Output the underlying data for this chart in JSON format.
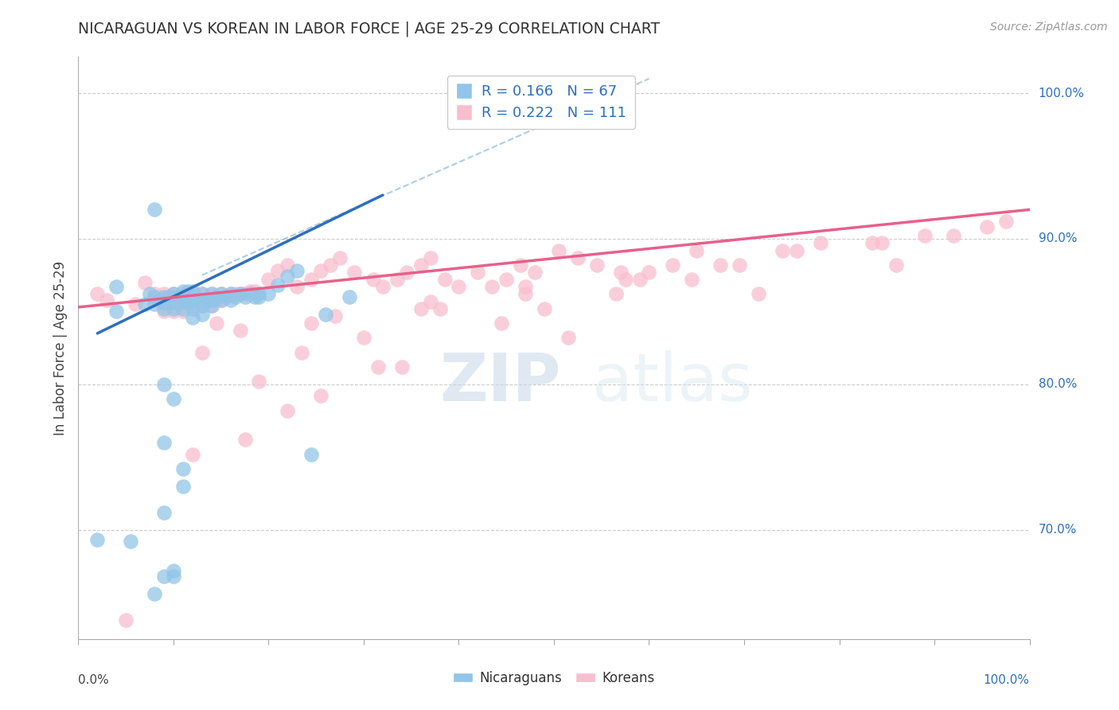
{
  "title": "NICARAGUAN VS KOREAN IN LABOR FORCE | AGE 25-29 CORRELATION CHART",
  "source": "Source: ZipAtlas.com",
  "ylabel": "In Labor Force | Age 25-29",
  "ytick_labels": [
    "70.0%",
    "80.0%",
    "90.0%",
    "100.0%"
  ],
  "ytick_values": [
    0.7,
    0.8,
    0.9,
    1.0
  ],
  "xlim": [
    0.0,
    1.0
  ],
  "ylim": [
    0.625,
    1.025
  ],
  "legend_blue_r": "0.166",
  "legend_blue_n": "67",
  "legend_pink_r": "0.222",
  "legend_pink_n": "111",
  "blue_color": "#92c5e8",
  "pink_color": "#f8bece",
  "trendline_blue": "#2e6fbe",
  "trendline_pink": "#e8608a",
  "dashed_color": "#8ab8e0",
  "watermark_zip": "ZIP",
  "watermark_atlas": "atlas",
  "legend_r_color": "#2e6fbe",
  "legend_n_color": "#2e6fbe",
  "bottom_legend_color": "#666666",
  "blue_scatter_x": [
    0.02,
    0.04,
    0.04,
    0.055,
    0.07,
    0.075,
    0.08,
    0.08,
    0.085,
    0.09,
    0.09,
    0.09,
    0.095,
    0.1,
    0.1,
    0.1,
    0.105,
    0.11,
    0.11,
    0.11,
    0.11,
    0.115,
    0.115,
    0.12,
    0.12,
    0.12,
    0.12,
    0.13,
    0.13,
    0.13,
    0.135,
    0.14,
    0.14,
    0.14,
    0.145,
    0.15,
    0.15,
    0.155,
    0.16,
    0.16,
    0.165,
    0.17,
    0.175,
    0.18,
    0.185,
    0.19,
    0.19,
    0.2,
    0.21,
    0.22,
    0.23,
    0.245,
    0.26,
    0.285,
    0.1,
    0.08,
    0.09,
    0.11,
    0.12,
    0.13,
    0.08,
    0.09,
    0.09,
    0.09,
    0.1,
    0.1,
    0.11
  ],
  "blue_scatter_y": [
    0.693,
    0.867,
    0.85,
    0.692,
    0.855,
    0.862,
    0.86,
    0.855,
    0.858,
    0.86,
    0.856,
    0.852,
    0.86,
    0.862,
    0.856,
    0.852,
    0.86,
    0.864,
    0.86,
    0.856,
    0.852,
    0.864,
    0.856,
    0.864,
    0.86,
    0.856,
    0.852,
    0.862,
    0.858,
    0.854,
    0.858,
    0.862,
    0.858,
    0.854,
    0.86,
    0.862,
    0.858,
    0.86,
    0.862,
    0.858,
    0.86,
    0.862,
    0.86,
    0.862,
    0.86,
    0.862,
    0.86,
    0.862,
    0.868,
    0.874,
    0.878,
    0.752,
    0.848,
    0.86,
    0.79,
    0.656,
    0.668,
    0.742,
    0.846,
    0.848,
    0.92,
    0.8,
    0.76,
    0.712,
    0.672,
    0.668,
    0.73
  ],
  "pink_scatter_x": [
    0.02,
    0.03,
    0.05,
    0.06,
    0.07,
    0.08,
    0.085,
    0.09,
    0.09,
    0.09,
    0.09,
    0.095,
    0.1,
    0.1,
    0.1,
    0.1,
    0.105,
    0.11,
    0.11,
    0.11,
    0.11,
    0.115,
    0.12,
    0.12,
    0.12,
    0.125,
    0.13,
    0.13,
    0.13,
    0.135,
    0.14,
    0.14,
    0.14,
    0.145,
    0.15,
    0.15,
    0.155,
    0.16,
    0.165,
    0.17,
    0.175,
    0.18,
    0.185,
    0.2,
    0.21,
    0.22,
    0.23,
    0.245,
    0.255,
    0.265,
    0.275,
    0.29,
    0.31,
    0.32,
    0.335,
    0.345,
    0.36,
    0.37,
    0.385,
    0.4,
    0.42,
    0.435,
    0.45,
    0.465,
    0.48,
    0.505,
    0.525,
    0.545,
    0.575,
    0.6,
    0.625,
    0.65,
    0.175,
    0.255,
    0.34,
    0.22,
    0.19,
    0.235,
    0.145,
    0.38,
    0.3,
    0.445,
    0.49,
    0.565,
    0.645,
    0.695,
    0.74,
    0.78,
    0.835,
    0.89,
    0.955,
    0.975,
    0.12,
    0.315,
    0.515,
    0.715,
    0.86,
    0.245,
    0.36,
    0.47,
    0.59,
    0.675,
    0.755,
    0.845,
    0.92,
    0.13,
    0.17,
    0.27,
    0.37,
    0.47,
    0.57
  ],
  "pink_scatter_y": [
    0.862,
    0.858,
    0.638,
    0.855,
    0.87,
    0.862,
    0.86,
    0.862,
    0.858,
    0.854,
    0.85,
    0.858,
    0.862,
    0.858,
    0.854,
    0.85,
    0.858,
    0.862,
    0.858,
    0.854,
    0.85,
    0.856,
    0.862,
    0.858,
    0.854,
    0.858,
    0.862,
    0.858,
    0.854,
    0.858,
    0.862,
    0.858,
    0.854,
    0.858,
    0.862,
    0.858,
    0.86,
    0.862,
    0.862,
    0.862,
    0.862,
    0.864,
    0.864,
    0.872,
    0.878,
    0.882,
    0.867,
    0.872,
    0.878,
    0.882,
    0.887,
    0.877,
    0.872,
    0.867,
    0.872,
    0.877,
    0.882,
    0.887,
    0.872,
    0.867,
    0.877,
    0.867,
    0.872,
    0.882,
    0.877,
    0.892,
    0.887,
    0.882,
    0.872,
    0.877,
    0.882,
    0.892,
    0.762,
    0.792,
    0.812,
    0.782,
    0.802,
    0.822,
    0.842,
    0.852,
    0.832,
    0.842,
    0.852,
    0.862,
    0.872,
    0.882,
    0.892,
    0.897,
    0.897,
    0.902,
    0.908,
    0.912,
    0.752,
    0.812,
    0.832,
    0.862,
    0.882,
    0.842,
    0.852,
    0.862,
    0.872,
    0.882,
    0.892,
    0.897,
    0.902,
    0.822,
    0.837,
    0.847,
    0.857,
    0.867,
    0.877
  ]
}
